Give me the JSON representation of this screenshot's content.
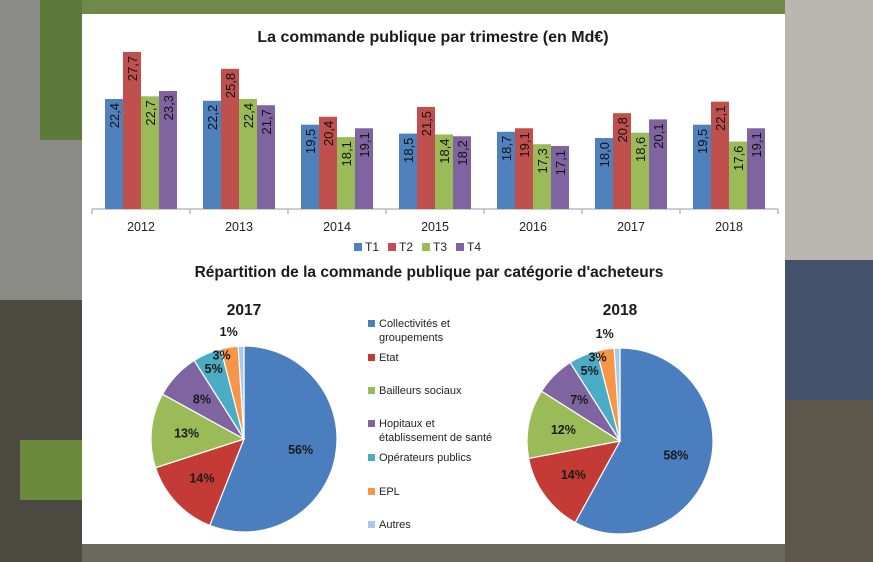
{
  "colors": {
    "T1": "#4f81bd",
    "T2": "#c0504d",
    "T3": "#9bbb59",
    "T4": "#8064a2",
    "pie": [
      "#4a7ebf",
      "#c43b36",
      "#9bbb59",
      "#8064a2",
      "#4bacc6",
      "#f79646",
      "#a6c9ec"
    ]
  },
  "chart_data": [
    {
      "type": "bar",
      "title": "La commande publique par trimestre (en Md€)",
      "categories": [
        "2012",
        "2013",
        "2014",
        "2015",
        "2016",
        "2017",
        "2018"
      ],
      "series": [
        {
          "name": "T1",
          "values": [
            22.4,
            22.2,
            19.5,
            18.5,
            18.7,
            18.0,
            19.5
          ],
          "labels": [
            "22,4",
            "22,2",
            "19,5",
            "18,5",
            "18,7",
            "18,0",
            "19,5"
          ]
        },
        {
          "name": "T2",
          "values": [
            27.7,
            25.8,
            20.4,
            21.5,
            19.1,
            20.8,
            22.1
          ],
          "labels": [
            "27,7",
            "25,8",
            "20,4",
            "21,5",
            "19,1",
            "20,8",
            "22,1"
          ]
        },
        {
          "name": "T3",
          "values": [
            22.7,
            22.4,
            18.1,
            18.4,
            17.3,
            18.6,
            17.6
          ],
          "labels": [
            "22,7",
            "22,4",
            "18,1",
            "18,4",
            "17,3",
            "18,6",
            "17,6"
          ]
        },
        {
          "name": "T4",
          "values": [
            23.3,
            21.7,
            19.1,
            18.2,
            17.1,
            20.1,
            19.1
          ],
          "labels": [
            "23,3",
            "21,7",
            "19,1",
            "18,2",
            "17,1",
            "20,1",
            "19,1"
          ]
        }
      ],
      "legend_position": "bottom"
    },
    {
      "type": "pie",
      "title": "2017",
      "categories": [
        "Collectivités et groupements",
        "Etat",
        "Bailleurs sociaux",
        "Hopitaux et établissement de santé",
        "Opérateurs publics",
        "EPL",
        "Autres"
      ],
      "values": [
        56,
        14,
        13,
        8,
        5,
        3,
        1
      ],
      "labels": [
        "56%",
        "14%",
        "13%",
        "8%",
        "5%",
        "3%",
        "1%"
      ]
    },
    {
      "type": "pie",
      "title": "2018",
      "categories": [
        "Collectivités et groupements",
        "Etat",
        "Bailleurs sociaux",
        "Hopitaux et établissement de santé",
        "Opérateurs publics",
        "EPL",
        "Autres"
      ],
      "values": [
        58,
        14,
        12,
        7,
        5,
        3,
        1
      ],
      "labels": [
        "58%",
        "14%",
        "12%",
        "7%",
        "5%",
        "3%",
        "1%"
      ]
    }
  ],
  "section_title": "Répartition de la commande publique par catégorie d'acheteurs",
  "pie_legend": [
    [
      "Collectivités et",
      "groupements"
    ],
    [
      "Etat"
    ],
    [
      "Bailleurs sociaux"
    ],
    [
      "Hopitaux et",
      "établissement de santé"
    ],
    [
      "Opérateurs publics"
    ],
    [
      "EPL"
    ],
    [
      "Autres"
    ]
  ]
}
